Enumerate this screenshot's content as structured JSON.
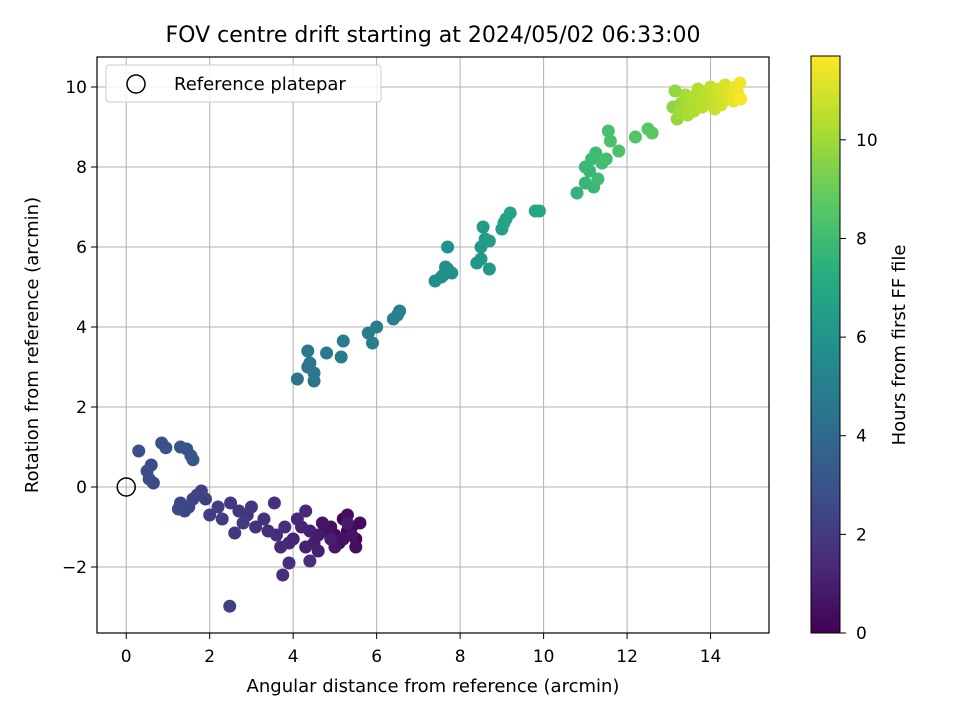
{
  "chart_data": {
    "type": "scatter",
    "title": "FOV centre drift starting at 2024/05/02 06:33:00",
    "xlabel": "Angular distance from reference (arcmin)",
    "ylabel": "Rotation from reference (arcmin)",
    "xlim": [
      -0.7,
      15.4
    ],
    "ylim": [
      -3.65,
      10.75
    ],
    "xticks": [
      "0",
      "2",
      "4",
      "6",
      "8",
      "10",
      "12",
      "14"
    ],
    "yticks": [
      "−2",
      "0",
      "2",
      "4",
      "6",
      "8",
      "10"
    ],
    "grid": true,
    "legend": {
      "label": "Reference platepar",
      "placement": "top-left"
    },
    "reference_point": {
      "x": 0,
      "y": 0
    },
    "colorbar": {
      "label": "Hours from first FF file",
      "colormap": "viridis",
      "range": [
        0,
        11.7
      ],
      "ticks": [
        "0",
        "2",
        "4",
        "6",
        "8",
        "10"
      ]
    },
    "points": [
      [
        5.3,
        -1.1,
        0.05
      ],
      [
        5.5,
        -1.3,
        0.1
      ],
      [
        5.2,
        -0.8,
        0.15
      ],
      [
        5.4,
        -1.0,
        0.2
      ],
      [
        5.1,
        -1.4,
        0.25
      ],
      [
        5.6,
        -0.9,
        0.3
      ],
      [
        5.0,
        -1.2,
        0.35
      ],
      [
        5.3,
        -0.7,
        0.4
      ],
      [
        5.5,
        -1.5,
        0.45
      ],
      [
        4.9,
        -1.0,
        0.5
      ],
      [
        5.2,
        -1.3,
        0.55
      ],
      [
        4.8,
        -1.1,
        0.6
      ],
      [
        5.4,
        -1.2,
        0.65
      ],
      [
        4.7,
        -0.9,
        0.7
      ],
      [
        5.0,
        -1.5,
        0.75
      ],
      [
        4.6,
        -1.2,
        0.8
      ],
      [
        5.3,
        -0.9,
        0.85
      ],
      [
        4.5,
        -1.4,
        0.9
      ],
      [
        4.9,
        -1.3,
        0.95
      ],
      [
        4.4,
        -1.1,
        1.0
      ],
      [
        4.6,
        -1.6,
        1.05
      ],
      [
        4.3,
        -1.5,
        1.1
      ],
      [
        4.0,
        -1.3,
        1.15
      ],
      [
        4.2,
        -1.0,
        1.2
      ],
      [
        3.9,
        -1.4,
        1.25
      ],
      [
        4.1,
        -0.8,
        1.3
      ],
      [
        3.7,
        -1.5,
        1.35
      ],
      [
        4.3,
        -0.6,
        1.4
      ],
      [
        3.8,
        -1.0,
        1.45
      ],
      [
        3.6,
        -1.2,
        1.5
      ],
      [
        3.9,
        -1.9,
        1.52
      ],
      [
        4.4,
        -1.85,
        1.55
      ],
      [
        3.75,
        -2.2,
        1.58
      ],
      [
        3.4,
        -1.1,
        1.6
      ],
      [
        3.55,
        -0.4,
        1.62
      ],
      [
        3.3,
        -0.8,
        1.65
      ],
      [
        3.1,
        -1.0,
        1.7
      ],
      [
        2.9,
        -0.7,
        1.75
      ],
      [
        2.6,
        -1.15,
        1.8
      ],
      [
        3.0,
        -0.5,
        1.85
      ],
      [
        2.7,
        -0.6,
        1.9
      ],
      [
        2.5,
        -0.4,
        1.95
      ],
      [
        2.8,
        -0.9,
        2.0
      ],
      [
        2.3,
        -0.8,
        2.05
      ],
      [
        2.2,
        -0.5,
        2.1
      ],
      [
        2.0,
        -0.7,
        2.15
      ],
      [
        1.9,
        -0.3,
        2.2
      ],
      [
        2.48,
        -2.98,
        2.22
      ],
      [
        1.8,
        -0.1,
        2.25
      ],
      [
        1.7,
        -0.2,
        2.3
      ],
      [
        1.6,
        -0.3,
        2.35
      ],
      [
        1.5,
        -0.5,
        2.4
      ],
      [
        1.4,
        -0.6,
        2.45
      ],
      [
        1.3,
        -0.4,
        2.5
      ],
      [
        1.25,
        -0.55,
        2.55
      ],
      [
        0.65,
        0.1,
        2.6
      ],
      [
        0.55,
        0.2,
        2.65
      ],
      [
        0.5,
        0.4,
        2.7
      ],
      [
        0.6,
        0.55,
        2.75
      ],
      [
        0.3,
        0.9,
        2.8
      ],
      [
        0.85,
        1.1,
        2.85
      ],
      [
        0.95,
        0.98,
        2.9
      ],
      [
        1.3,
        1.0,
        2.95
      ],
      [
        1.45,
        0.95,
        3.0
      ],
      [
        1.55,
        0.78,
        3.05
      ],
      [
        1.6,
        0.68,
        3.1
      ],
      [
        4.1,
        2.7,
        4.4
      ],
      [
        4.5,
        2.65,
        4.45
      ],
      [
        4.35,
        3.0,
        4.5
      ],
      [
        4.4,
        3.1,
        4.55
      ],
      [
        4.5,
        2.85,
        4.6
      ],
      [
        4.35,
        3.4,
        4.65
      ],
      [
        4.8,
        3.35,
        4.7
      ],
      [
        5.15,
        3.25,
        4.75
      ],
      [
        5.2,
        3.65,
        4.8
      ],
      [
        5.8,
        3.85,
        4.9
      ],
      [
        5.9,
        3.6,
        4.95
      ],
      [
        6.0,
        4.0,
        5.0
      ],
      [
        6.4,
        4.2,
        5.1
      ],
      [
        6.5,
        4.3,
        5.15
      ],
      [
        6.55,
        4.4,
        5.2
      ],
      [
        7.4,
        5.15,
        5.6
      ],
      [
        7.6,
        5.3,
        5.65
      ],
      [
        7.55,
        5.25,
        5.7
      ],
      [
        7.65,
        5.5,
        5.75
      ],
      [
        7.7,
        5.45,
        5.8
      ],
      [
        7.8,
        5.35,
        5.85
      ],
      [
        7.7,
        6.0,
        5.9
      ],
      [
        8.4,
        5.6,
        6.1
      ],
      [
        8.5,
        5.7,
        6.15
      ],
      [
        8.7,
        5.45,
        6.2
      ],
      [
        8.5,
        6.0,
        6.25
      ],
      [
        8.6,
        6.2,
        6.3
      ],
      [
        8.55,
        6.5,
        6.35
      ],
      [
        8.7,
        6.15,
        6.4
      ],
      [
        9.0,
        6.45,
        6.6
      ],
      [
        9.05,
        6.6,
        6.65
      ],
      [
        9.1,
        6.7,
        6.7
      ],
      [
        9.2,
        6.85,
        6.75
      ],
      [
        9.8,
        6.9,
        6.9
      ],
      [
        9.9,
        6.9,
        6.95
      ],
      [
        10.8,
        7.35,
        7.6
      ],
      [
        11.0,
        7.6,
        7.7
      ],
      [
        11.1,
        7.9,
        7.75
      ],
      [
        11.2,
        7.5,
        7.8
      ],
      [
        11.0,
        8.0,
        7.85
      ],
      [
        11.15,
        8.2,
        7.9
      ],
      [
        11.25,
        8.35,
        7.95
      ],
      [
        11.3,
        7.7,
        8.0
      ],
      [
        11.4,
        8.1,
        8.05
      ],
      [
        11.5,
        8.2,
        8.1
      ],
      [
        11.55,
        8.9,
        8.2
      ],
      [
        11.6,
        8.65,
        8.25
      ],
      [
        11.8,
        8.4,
        8.3
      ],
      [
        12.2,
        8.75,
        8.45
      ],
      [
        12.5,
        8.95,
        8.6
      ],
      [
        12.6,
        8.85,
        8.65
      ],
      [
        13.1,
        9.5,
        9.6
      ],
      [
        13.15,
        9.9,
        9.7
      ],
      [
        13.2,
        9.2,
        9.8
      ],
      [
        13.3,
        9.6,
        9.9
      ],
      [
        13.25,
        9.35,
        10.0
      ],
      [
        13.4,
        9.8,
        10.1
      ],
      [
        13.45,
        9.3,
        10.15
      ],
      [
        13.5,
        9.55,
        10.2
      ],
      [
        13.55,
        9.75,
        10.25
      ],
      [
        13.6,
        9.4,
        10.3
      ],
      [
        13.7,
        9.95,
        10.35
      ],
      [
        13.75,
        9.65,
        10.4
      ],
      [
        13.8,
        9.5,
        10.5
      ],
      [
        13.9,
        9.85,
        10.55
      ],
      [
        14.0,
        9.6,
        10.6
      ],
      [
        14.0,
        10.0,
        10.65
      ],
      [
        14.1,
        9.45,
        10.7
      ],
      [
        14.15,
        9.75,
        10.8
      ],
      [
        14.2,
        9.95,
        10.85
      ],
      [
        14.25,
        9.55,
        10.9
      ],
      [
        14.3,
        9.8,
        10.95
      ],
      [
        14.35,
        10.05,
        11.0
      ],
      [
        14.4,
        9.7,
        11.05
      ],
      [
        14.45,
        9.9,
        11.1
      ],
      [
        14.5,
        9.8,
        11.2
      ],
      [
        14.55,
        9.65,
        11.25
      ],
      [
        14.6,
        10.0,
        11.35
      ],
      [
        14.65,
        9.85,
        11.4
      ],
      [
        14.7,
        10.1,
        11.5
      ],
      [
        14.72,
        9.7,
        11.6
      ]
    ]
  }
}
